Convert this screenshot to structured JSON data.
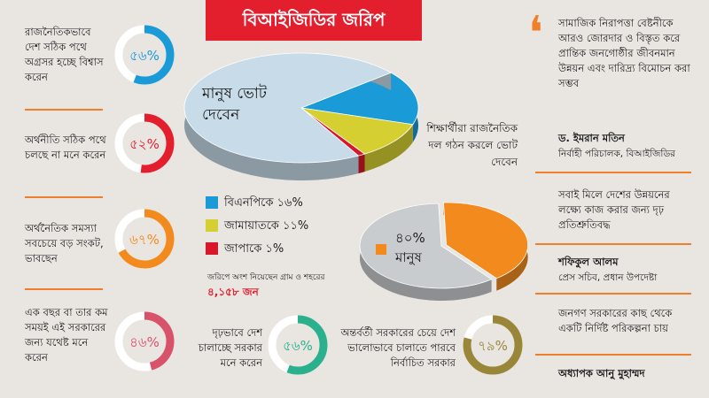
{
  "title": "বিআইজিডির জরিপ",
  "left_stats": [
    {
      "text": "রাজনৈতিকভাবে দেশ সঠিক পথে অগ্রসর হচ্ছে বিশ্বাস করেন",
      "percent_label": "৫৬%",
      "value": 56,
      "color": "#1a9ad6"
    },
    {
      "text": "অর্থনীতি সঠিক পথে চলছে না মনে করেন",
      "percent_label": "৫২%",
      "value": 52,
      "color": "#e31e2d"
    },
    {
      "text": "অর্থনৈতিক সমস্যা সবচেয়ে বড় সংকট, ভাবছেন",
      "percent_label": "৬৭%",
      "value": 67,
      "color": "#f28a1e"
    },
    {
      "text": "এক বছর বা তার কম সময়ই এই সরকারের জন্য যথেষ্ট মনে করেন",
      "percent_label": "৪৬%",
      "value": 46,
      "color": "#d8526a"
    }
  ],
  "bottom_stats": [
    {
      "text": "দৃঢ়ভাবে দেশ চালাচ্ছে সরকার মনে করেন",
      "percent_label": "৫৬%",
      "value": 56,
      "color": "#2bb08e"
    },
    {
      "text": "অন্তর্বর্তী সরকারের চেয়ে দেশ ভালোভাবে চালাতে পারবে নির্বাচিত সরকার",
      "percent_label": "৭৯%",
      "value": 79,
      "color": "#9a8638"
    }
  ],
  "chart_data": [
    {
      "type": "pie",
      "center_label": "মানুষ ভোট দেবেন",
      "slices": [
        {
          "label": "বিএনপিকে ১৬%",
          "value": 16,
          "color": "#1a9ad6"
        },
        {
          "label": "জামায়াতকে ১১%",
          "value": 11,
          "color": "#d6cf32"
        },
        {
          "label": "জাপাকে ১%",
          "value": 1,
          "color": "#d8182a"
        },
        {
          "label": "",
          "value": 72,
          "color": "#c7dbe8"
        }
      ]
    },
    {
      "type": "pie",
      "caption": "শিক্ষার্থীরা রাজনৈতিক দল গঠন করলে ভোট দেবেন",
      "center_label": "৪০% মানুষ",
      "slices": [
        {
          "label": "৪০%",
          "value": 40,
          "color": "#f28a1e"
        },
        {
          "label": "",
          "value": 60,
          "color": "#c9ccce"
        }
      ]
    }
  ],
  "survey_note": "জরিপে অংশ নিয়েছেন গ্রাম ও শহরের",
  "survey_count": "৪,১৫৮ জন",
  "quotes": [
    {
      "text": "সামাজিক নিরাপত্তা বেষ্টনীকে আরও জোরদার ও বিস্তৃত করে প্রান্তিক জনগোষ্ঠীর জীবনমান উন্নয়ন এবং দারিদ্র্য বিমোচন করা সম্ভব",
      "name": "ড. ইমরান মতিন",
      "role": "নির্বাহী পরিচালক, বিআইজিডির"
    },
    {
      "text": "সবাই মিলে দেশের উন্নয়নের লক্ষ্যে কাজ করার জন্য দৃঢ় প্রতিশ্রুতিবদ্ধ",
      "name": "শফিকুল আলম",
      "role": "প্রেস সচিব, প্রধান উপদেষ্টা"
    },
    {
      "text": "জনগণ সরকারের কাছ থেকে একটি নির্দিষ্ট পরিকল্পনা চায়",
      "name": "অধ্যাপক আনু মুহাম্মদ",
      "role": ""
    }
  ],
  "quote_mark": "❛",
  "colors": {
    "accent": "#f07e2a",
    "title_bg": "#e31e2d"
  }
}
